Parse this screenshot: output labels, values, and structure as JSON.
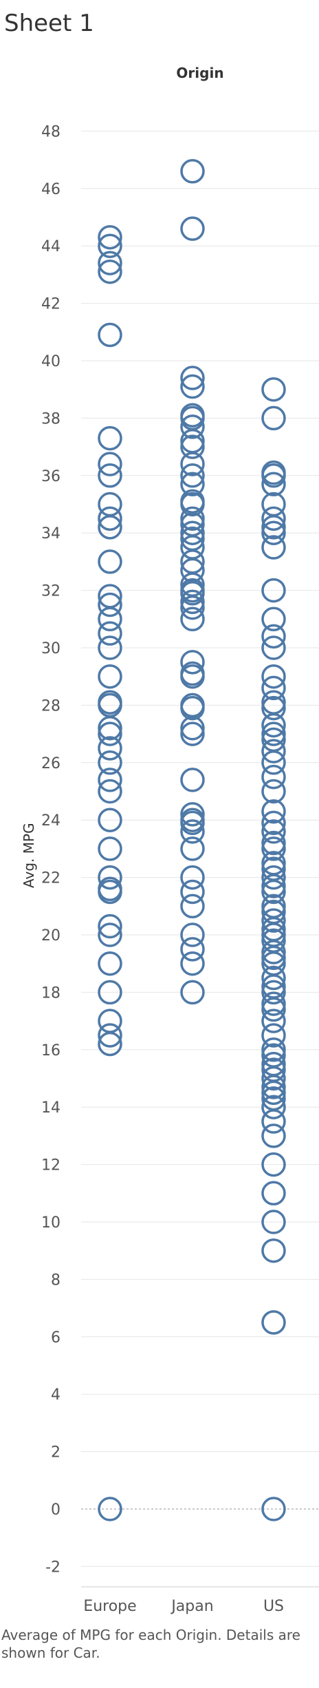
{
  "sheet": {
    "title": "Sheet 1"
  },
  "column_header": "Origin",
  "caption": "Average of MPG for each Origin.  Details are shown for Car.",
  "colors": {
    "mark": "#4e79a7",
    "grid": "#e6e6e6",
    "zero_line": "#aaaaaa",
    "text": "#555555"
  },
  "chart_data": {
    "type": "scatter",
    "title": "",
    "xlabel": "Origin",
    "ylabel": "Avg. MPG",
    "ylim": [
      -3,
      50
    ],
    "yticks": [
      -2,
      0,
      2,
      4,
      6,
      8,
      10,
      12,
      14,
      16,
      18,
      20,
      22,
      24,
      26,
      28,
      30,
      32,
      34,
      36,
      38,
      40,
      42,
      44,
      46,
      48
    ],
    "grid": true,
    "legend": "none",
    "marker": "open-circle",
    "categories": [
      "Europe",
      "Japan",
      "US"
    ],
    "series": [
      {
        "category": "Europe",
        "values": [
          0,
          16.2,
          16.5,
          17,
          18,
          19,
          20,
          20.3,
          21.5,
          21.6,
          22,
          23,
          24,
          25,
          25.4,
          26,
          26.5,
          27,
          27.2,
          28,
          28.1,
          29,
          30,
          30.5,
          31,
          31.5,
          31.8,
          33,
          34.2,
          34.5,
          35,
          36,
          36.4,
          37.3,
          40.9,
          43.1,
          43.4,
          44,
          44.3
        ]
      },
      {
        "category": "Japan",
        "values": [
          18,
          19,
          19.5,
          20,
          21,
          21.5,
          22,
          23,
          23.6,
          23.9,
          24,
          24.2,
          25.4,
          27,
          27.2,
          27.9,
          28,
          29,
          29.1,
          29.5,
          31,
          31.4,
          31.6,
          31.9,
          32,
          32.2,
          32.7,
          33,
          33.5,
          33.8,
          34,
          34.3,
          34.5,
          35,
          35.1,
          35.7,
          36,
          36.4,
          37,
          37.2,
          37.7,
          38,
          38.1,
          39.1,
          39.4,
          44.6,
          46.6
        ]
      },
      {
        "category": "US",
        "values": [
          0,
          6.5,
          9,
          10,
          11,
          12,
          13,
          13.5,
          14,
          14.3,
          14.5,
          14.7,
          15,
          15.3,
          15.5,
          15.8,
          16,
          16.5,
          17,
          17.4,
          17.6,
          18,
          18.2,
          18.5,
          19,
          19.2,
          19.4,
          19.8,
          20,
          20.2,
          20.5,
          20.8,
          21,
          21.5,
          21.7,
          22,
          22.3,
          22.5,
          23,
          23.2,
          23.6,
          23.9,
          24.3,
          25,
          25.5,
          26,
          26.4,
          26.8,
          27,
          27.3,
          27.9,
          28.1,
          28.6,
          29,
          30,
          30.4,
          31,
          32,
          33.5,
          34,
          34.2,
          34.5,
          35,
          35.7,
          36,
          36.1,
          38,
          39
        ]
      }
    ]
  }
}
